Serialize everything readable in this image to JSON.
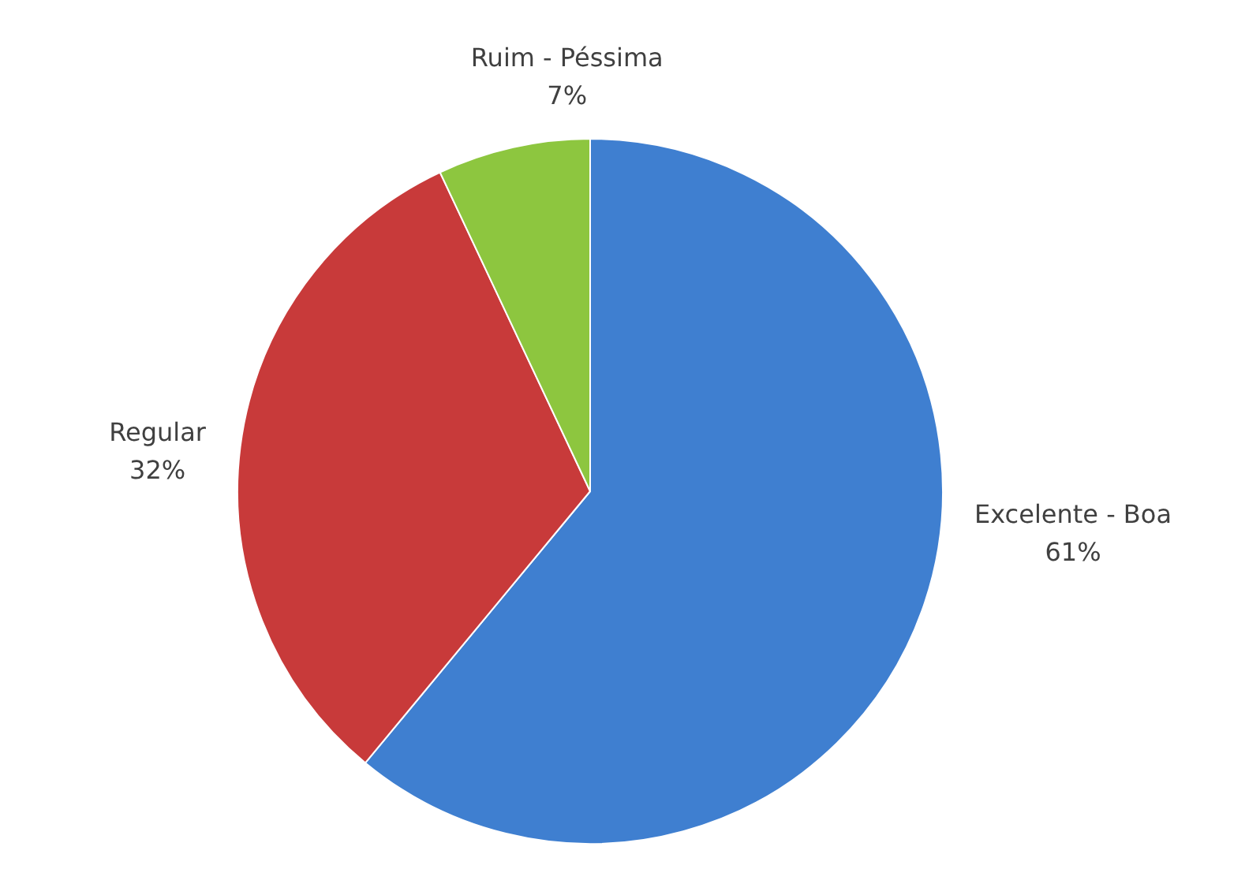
{
  "chart_data": {
    "type": "pie",
    "categories": [
      "Excelente - Boa",
      "Regular",
      "Ruim - Péssima"
    ],
    "values": [
      61,
      32,
      7
    ],
    "colors": [
      "#3f7fd0",
      "#c83a3a",
      "#8dc63f"
    ],
    "value_labels": [
      "61%",
      "32%",
      "7%"
    ]
  }
}
